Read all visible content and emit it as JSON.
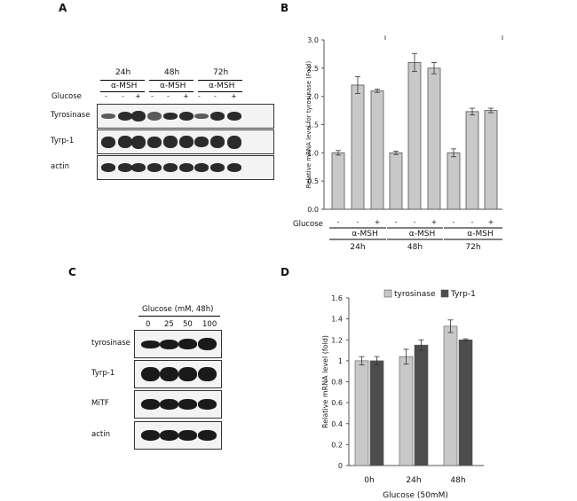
{
  "panels": {
    "A": {
      "letter": "A",
      "time_labels": [
        "24h",
        "48h",
        "72h"
      ],
      "treatment": "α-MSH",
      "glucose_label": "Glucose",
      "glucose_signs": [
        "-",
        "-",
        "+",
        "-",
        "-",
        "+",
        "-",
        "-",
        "+"
      ],
      "rows": [
        "Tyrosinase",
        "Tyrp-1",
        "actin"
      ]
    },
    "B": {
      "letter": "B"
    },
    "C": {
      "letter": "C",
      "header": "Glucose (mM, 48h)",
      "concentrations": [
        "0",
        "25",
        "50",
        "100"
      ],
      "rows": [
        "tyrosinase",
        "Tyrp-1",
        "MiTF",
        "actin"
      ]
    },
    "D": {
      "letter": "D"
    }
  },
  "chart_data": [
    {
      "type": "bar",
      "ylabel": "Relative mRNA level for tyrosinase (Fold)",
      "ylim": [
        0,
        3.0
      ],
      "yticks": [
        "0.0",
        "0.5",
        "1.0",
        "1.5",
        "2.0",
        "2.5",
        "3.0"
      ],
      "glucose_label": "Glucose",
      "glucose_signs": [
        "-",
        "-",
        "+",
        "-",
        "-",
        "+",
        "-",
        "-",
        "+"
      ],
      "treatment_labels": [
        "α-MSH",
        "α-MSH",
        "α-MSH"
      ],
      "time_labels": [
        "24h",
        "48h",
        "72h"
      ],
      "values": [
        1.0,
        2.2,
        2.1,
        1.0,
        2.6,
        2.5,
        1.0,
        1.73,
        1.75
      ],
      "errors": [
        0.04,
        0.15,
        0.03,
        0.03,
        0.16,
        0.1,
        0.07,
        0.06,
        0.04
      ],
      "colors": {
        "bar": "#c8c8c8"
      }
    },
    {
      "type": "bar",
      "xlabel": "Glucose (50mM)",
      "ylabel": "Relative mRNA level (fold)",
      "ylim": [
        0,
        1.6
      ],
      "yticks": [
        "0",
        "0.2",
        "0.4",
        "0.6",
        "0.8",
        "1",
        "1.2",
        "1.4",
        "1.6"
      ],
      "categories": [
        "0h",
        "24h",
        "48h"
      ],
      "series": [
        {
          "name": "tyrosinase",
          "values": [
            1.0,
            1.04,
            1.33
          ],
          "errors": [
            0.04,
            0.07,
            0.06
          ],
          "color": "#c8c8c8"
        },
        {
          "name": "Tyrp-1",
          "values": [
            1.0,
            1.15,
            1.2
          ],
          "errors": [
            0.04,
            0.05,
            0.01
          ],
          "color": "#4d4d4d"
        }
      ],
      "legend_position": "top"
    }
  ]
}
